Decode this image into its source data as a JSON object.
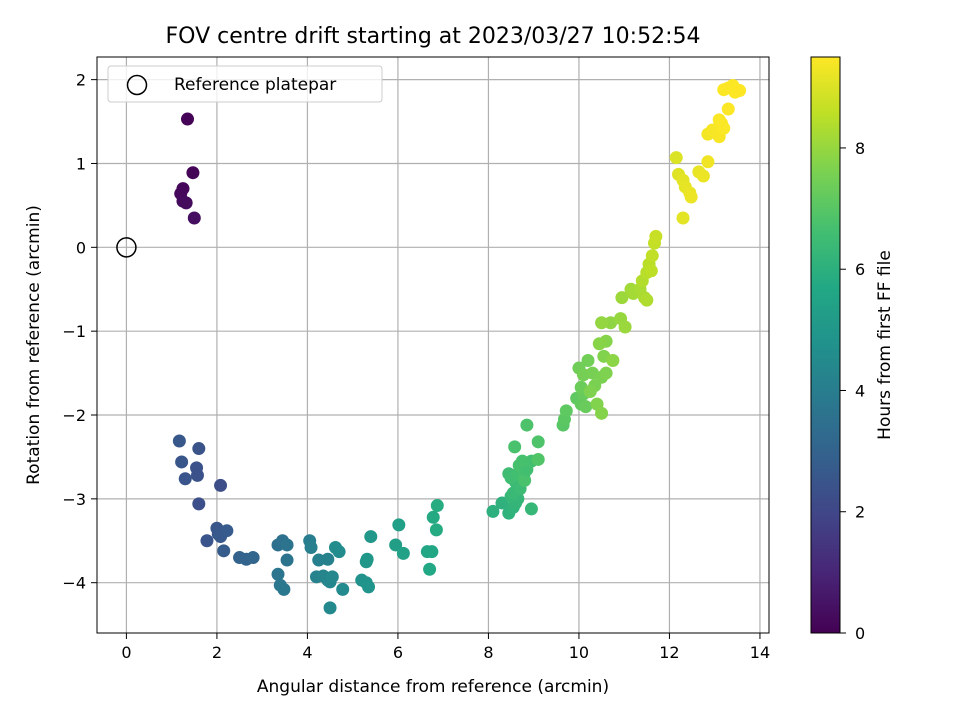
{
  "chart_data": {
    "type": "scatter",
    "title": "FOV centre drift starting at 2023/03/27 10:52:54",
    "xlabel": "Angular distance from reference (arcmin)",
    "ylabel": "Rotation from reference (arcmin)",
    "xlim": [
      -0.65,
      14.2
    ],
    "ylim": [
      -4.6,
      2.27
    ],
    "xticks": [
      0,
      2,
      4,
      6,
      8,
      10,
      12,
      14
    ],
    "yticks": [
      -4,
      -3,
      -2,
      -1,
      0,
      1,
      2
    ],
    "grid": true,
    "legend": {
      "position": "top-left",
      "entries": [
        "Reference platepar"
      ]
    },
    "reference_point": {
      "x": 0,
      "y": 0
    },
    "colorbar": {
      "label": "Hours from first FF file",
      "range": [
        0,
        9.5
      ],
      "ticks": [
        0,
        2,
        4,
        6,
        8
      ],
      "colormap": "viridis"
    },
    "points": [
      {
        "x": 1.35,
        "y": 1.53,
        "h": 0.05
      },
      {
        "x": 1.47,
        "y": 0.89,
        "h": 0.1
      },
      {
        "x": 1.25,
        "y": 0.7,
        "h": 0.15
      },
      {
        "x": 1.2,
        "y": 0.64,
        "h": 0.2
      },
      {
        "x": 1.25,
        "y": 0.55,
        "h": 0.25
      },
      {
        "x": 1.32,
        "y": 0.53,
        "h": 0.3
      },
      {
        "x": 1.5,
        "y": 0.35,
        "h": 0.35
      },
      {
        "x": 1.17,
        "y": -2.31,
        "h": 2.6
      },
      {
        "x": 1.22,
        "y": -2.56,
        "h": 2.55
      },
      {
        "x": 1.3,
        "y": -2.76,
        "h": 2.5
      },
      {
        "x": 1.6,
        "y": -2.4,
        "h": 2.45
      },
      {
        "x": 1.55,
        "y": -2.63,
        "h": 2.4
      },
      {
        "x": 1.57,
        "y": -2.72,
        "h": 2.35
      },
      {
        "x": 1.6,
        "y": -3.06,
        "h": 2.3
      },
      {
        "x": 2.08,
        "y": -2.84,
        "h": 2.25
      },
      {
        "x": 1.78,
        "y": -3.5,
        "h": 2.5
      },
      {
        "x": 2.0,
        "y": -3.35,
        "h": 2.55
      },
      {
        "x": 2.03,
        "y": -3.42,
        "h": 2.6
      },
      {
        "x": 2.08,
        "y": -3.45,
        "h": 2.65
      },
      {
        "x": 2.22,
        "y": -3.38,
        "h": 2.7
      },
      {
        "x": 2.15,
        "y": -3.62,
        "h": 2.75
      },
      {
        "x": 2.5,
        "y": -3.7,
        "h": 3.0
      },
      {
        "x": 2.65,
        "y": -3.72,
        "h": 3.05
      },
      {
        "x": 2.8,
        "y": -3.7,
        "h": 3.1
      },
      {
        "x": 3.35,
        "y": -3.55,
        "h": 3.5
      },
      {
        "x": 3.45,
        "y": -3.5,
        "h": 3.55
      },
      {
        "x": 3.55,
        "y": -3.55,
        "h": 3.6
      },
      {
        "x": 3.55,
        "y": -3.73,
        "h": 3.65
      },
      {
        "x": 3.35,
        "y": -3.9,
        "h": 3.7
      },
      {
        "x": 3.4,
        "y": -4.03,
        "h": 3.75
      },
      {
        "x": 3.48,
        "y": -4.08,
        "h": 3.8
      },
      {
        "x": 4.05,
        "y": -3.5,
        "h": 4.0
      },
      {
        "x": 4.08,
        "y": -3.58,
        "h": 4.05
      },
      {
        "x": 4.25,
        "y": -3.73,
        "h": 4.1
      },
      {
        "x": 4.45,
        "y": -3.72,
        "h": 4.15
      },
      {
        "x": 4.2,
        "y": -3.93,
        "h": 4.2
      },
      {
        "x": 4.35,
        "y": -3.92,
        "h": 4.25
      },
      {
        "x": 4.45,
        "y": -3.97,
        "h": 4.3
      },
      {
        "x": 4.5,
        "y": -3.99,
        "h": 4.35
      },
      {
        "x": 4.55,
        "y": -3.93,
        "h": 4.4
      },
      {
        "x": 4.5,
        "y": -4.3,
        "h": 4.45
      },
      {
        "x": 4.78,
        "y": -4.08,
        "h": 4.5
      },
      {
        "x": 4.62,
        "y": -3.58,
        "h": 4.55
      },
      {
        "x": 4.7,
        "y": -3.63,
        "h": 4.6
      },
      {
        "x": 5.2,
        "y": -3.97,
        "h": 4.8
      },
      {
        "x": 5.3,
        "y": -4.0,
        "h": 4.85
      },
      {
        "x": 5.35,
        "y": -4.05,
        "h": 4.9
      },
      {
        "x": 5.3,
        "y": -3.75,
        "h": 4.95
      },
      {
        "x": 5.32,
        "y": -3.72,
        "h": 5.0
      },
      {
        "x": 5.4,
        "y": -3.45,
        "h": 5.05
      },
      {
        "x": 5.95,
        "y": -3.55,
        "h": 5.3
      },
      {
        "x": 6.02,
        "y": -3.31,
        "h": 5.35
      },
      {
        "x": 6.12,
        "y": -3.65,
        "h": 5.4
      },
      {
        "x": 6.65,
        "y": -3.63,
        "h": 5.6
      },
      {
        "x": 6.75,
        "y": -3.63,
        "h": 5.65
      },
      {
        "x": 6.7,
        "y": -3.84,
        "h": 5.7
      },
      {
        "x": 6.78,
        "y": -3.22,
        "h": 5.75
      },
      {
        "x": 6.85,
        "y": -3.37,
        "h": 5.8
      },
      {
        "x": 6.87,
        "y": -3.08,
        "h": 5.85
      },
      {
        "x": 8.1,
        "y": -3.15,
        "h": 6.0
      },
      {
        "x": 8.3,
        "y": -3.05,
        "h": 6.05
      },
      {
        "x": 8.45,
        "y": -3.17,
        "h": 6.1
      },
      {
        "x": 8.55,
        "y": -3.1,
        "h": 6.15
      },
      {
        "x": 8.6,
        "y": -3.05,
        "h": 6.2
      },
      {
        "x": 8.65,
        "y": -3.0,
        "h": 6.25
      },
      {
        "x": 8.5,
        "y": -2.97,
        "h": 6.3
      },
      {
        "x": 8.55,
        "y": -2.93,
        "h": 6.35
      },
      {
        "x": 8.6,
        "y": -2.8,
        "h": 6.4
      },
      {
        "x": 8.7,
        "y": -2.88,
        "h": 6.45
      },
      {
        "x": 8.45,
        "y": -2.7,
        "h": 6.5
      },
      {
        "x": 8.5,
        "y": -2.75,
        "h": 6.55
      },
      {
        "x": 8.65,
        "y": -2.7,
        "h": 6.6
      },
      {
        "x": 8.78,
        "y": -2.72,
        "h": 6.65
      },
      {
        "x": 8.68,
        "y": -2.6,
        "h": 6.7
      },
      {
        "x": 8.8,
        "y": -2.78,
        "h": 6.75
      },
      {
        "x": 8.85,
        "y": -2.65,
        "h": 6.6
      },
      {
        "x": 8.95,
        "y": -2.55,
        "h": 6.65
      },
      {
        "x": 8.75,
        "y": -2.55,
        "h": 6.7
      },
      {
        "x": 8.58,
        "y": -2.38,
        "h": 6.75
      },
      {
        "x": 8.85,
        "y": -2.12,
        "h": 6.8
      },
      {
        "x": 9.1,
        "y": -2.32,
        "h": 6.85
      },
      {
        "x": 9.1,
        "y": -2.53,
        "h": 6.9
      },
      {
        "x": 8.95,
        "y": -3.12,
        "h": 6.3
      },
      {
        "x": 9.65,
        "y": -2.12,
        "h": 7.0
      },
      {
        "x": 9.68,
        "y": -2.05,
        "h": 7.05
      },
      {
        "x": 9.72,
        "y": -1.95,
        "h": 7.1
      },
      {
        "x": 9.95,
        "y": -1.8,
        "h": 7.15
      },
      {
        "x": 10.05,
        "y": -1.87,
        "h": 7.2
      },
      {
        "x": 10.1,
        "y": -1.75,
        "h": 7.25
      },
      {
        "x": 10.15,
        "y": -1.9,
        "h": 7.3
      },
      {
        "x": 10.05,
        "y": -1.67,
        "h": 7.35
      },
      {
        "x": 10.0,
        "y": -1.44,
        "h": 7.4
      },
      {
        "x": 10.2,
        "y": -1.35,
        "h": 7.45
      },
      {
        "x": 10.1,
        "y": -1.52,
        "h": 7.5
      },
      {
        "x": 10.3,
        "y": -1.5,
        "h": 7.55
      },
      {
        "x": 10.35,
        "y": -1.65,
        "h": 7.6
      },
      {
        "x": 10.25,
        "y": -1.72,
        "h": 7.65
      },
      {
        "x": 10.4,
        "y": -1.87,
        "h": 7.7
      },
      {
        "x": 10.5,
        "y": -1.98,
        "h": 7.75
      },
      {
        "x": 10.5,
        "y": -1.55,
        "h": 7.6
      },
      {
        "x": 10.6,
        "y": -1.5,
        "h": 7.65
      },
      {
        "x": 10.55,
        "y": -1.3,
        "h": 7.7
      },
      {
        "x": 10.6,
        "y": -1.12,
        "h": 7.75
      },
      {
        "x": 10.45,
        "y": -1.15,
        "h": 7.8
      },
      {
        "x": 10.75,
        "y": -1.35,
        "h": 7.85
      },
      {
        "x": 10.7,
        "y": -0.9,
        "h": 7.9
      },
      {
        "x": 10.5,
        "y": -0.9,
        "h": 7.95
      },
      {
        "x": 10.92,
        "y": -0.85,
        "h": 8.0
      },
      {
        "x": 11.02,
        "y": -0.95,
        "h": 8.05
      },
      {
        "x": 10.95,
        "y": -0.6,
        "h": 8.1
      },
      {
        "x": 11.15,
        "y": -0.5,
        "h": 8.15
      },
      {
        "x": 11.2,
        "y": -0.55,
        "h": 8.2
      },
      {
        "x": 11.35,
        "y": -0.5,
        "h": 8.25
      },
      {
        "x": 11.45,
        "y": -0.6,
        "h": 8.3
      },
      {
        "x": 11.5,
        "y": -0.63,
        "h": 8.35
      },
      {
        "x": 11.4,
        "y": -0.4,
        "h": 8.4
      },
      {
        "x": 11.5,
        "y": -0.3,
        "h": 8.45
      },
      {
        "x": 11.55,
        "y": -0.2,
        "h": 8.5
      },
      {
        "x": 11.6,
        "y": -0.28,
        "h": 8.55
      },
      {
        "x": 11.62,
        "y": -0.1,
        "h": 8.6
      },
      {
        "x": 11.67,
        "y": 0.05,
        "h": 8.65
      },
      {
        "x": 11.7,
        "y": 0.13,
        "h": 8.7
      },
      {
        "x": 12.15,
        "y": 1.07,
        "h": 9.0
      },
      {
        "x": 12.2,
        "y": 0.87,
        "h": 9.05
      },
      {
        "x": 12.3,
        "y": 0.8,
        "h": 9.1
      },
      {
        "x": 12.35,
        "y": 0.72,
        "h": 9.15
      },
      {
        "x": 12.45,
        "y": 0.65,
        "h": 9.2
      },
      {
        "x": 12.48,
        "y": 0.6,
        "h": 9.25
      },
      {
        "x": 12.3,
        "y": 0.35,
        "h": 9.1
      },
      {
        "x": 12.65,
        "y": 0.9,
        "h": 9.2
      },
      {
        "x": 12.75,
        "y": 0.85,
        "h": 9.25
      },
      {
        "x": 12.85,
        "y": 1.02,
        "h": 9.3
      },
      {
        "x": 12.85,
        "y": 1.35,
        "h": 9.35
      },
      {
        "x": 12.95,
        "y": 1.4,
        "h": 9.4
      },
      {
        "x": 13.1,
        "y": 1.32,
        "h": 9.42
      },
      {
        "x": 13.15,
        "y": 1.48,
        "h": 9.44
      },
      {
        "x": 13.2,
        "y": 1.42,
        "h": 9.45
      },
      {
        "x": 13.1,
        "y": 1.52,
        "h": 9.46
      },
      {
        "x": 13.3,
        "y": 1.65,
        "h": 9.47
      },
      {
        "x": 13.2,
        "y": 1.88,
        "h": 9.48
      },
      {
        "x": 13.3,
        "y": 1.9,
        "h": 9.48
      },
      {
        "x": 13.4,
        "y": 1.93,
        "h": 9.49
      },
      {
        "x": 13.45,
        "y": 1.85,
        "h": 9.5
      },
      {
        "x": 13.55,
        "y": 1.87,
        "h": 9.5
      }
    ]
  }
}
